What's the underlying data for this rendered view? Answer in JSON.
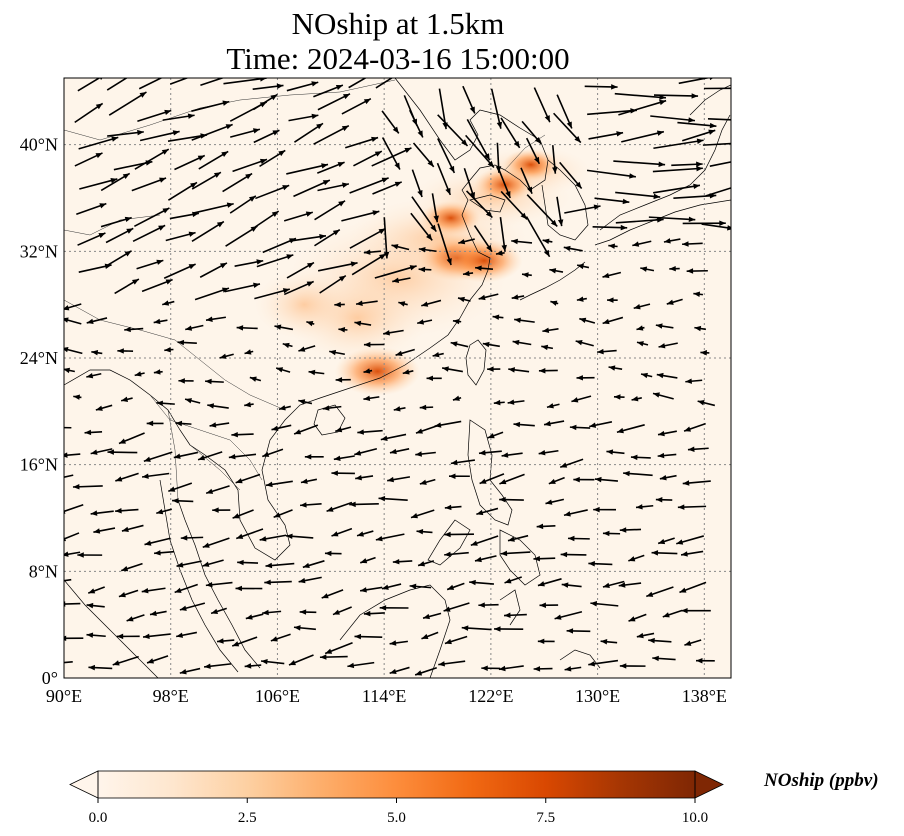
{
  "title_line1": "NOship at 1.5km",
  "title_line2": "Time: 2024-03-16 15:00:00",
  "map": {
    "lon_range": [
      90,
      140
    ],
    "lat_range": [
      0,
      45
    ],
    "lon_ticks": [
      90,
      98,
      106,
      114,
      122,
      130,
      138
    ],
    "lat_ticks": [
      0,
      8,
      16,
      24,
      32,
      40
    ],
    "lon_tick_labels": [
      "90°E",
      "98°E",
      "106°E",
      "114°E",
      "122°E",
      "130°E",
      "138°E"
    ],
    "lat_tick_labels": [
      "0°",
      "8°N",
      "16°N",
      "24°N",
      "32°N",
      "40°N"
    ],
    "gridlines": true,
    "hotspots": [
      {
        "lon": 113.5,
        "lat": 23.0,
        "value": 7.5
      },
      {
        "lon": 119.5,
        "lat": 31.5,
        "value": 7.0
      },
      {
        "lon": 121.5,
        "lat": 31.3,
        "value": 6.5
      },
      {
        "lon": 119.0,
        "lat": 34.5,
        "value": 4.5
      },
      {
        "lon": 123.0,
        "lat": 37.0,
        "value": 4.5
      },
      {
        "lon": 125.0,
        "lat": 38.5,
        "value": 4.0
      }
    ]
  },
  "colorbar": {
    "label": "NOship (ppbv)",
    "min": 0.0,
    "max": 10.0,
    "ticks": [
      "0.0",
      "2.5",
      "5.0",
      "7.5",
      "10.0"
    ],
    "colors": [
      "#fff5eb",
      "#fee6ce",
      "#fdd0a2",
      "#fdae6b",
      "#fd8d3c",
      "#f16913",
      "#d94801",
      "#a63603",
      "#7f2704"
    ]
  }
}
